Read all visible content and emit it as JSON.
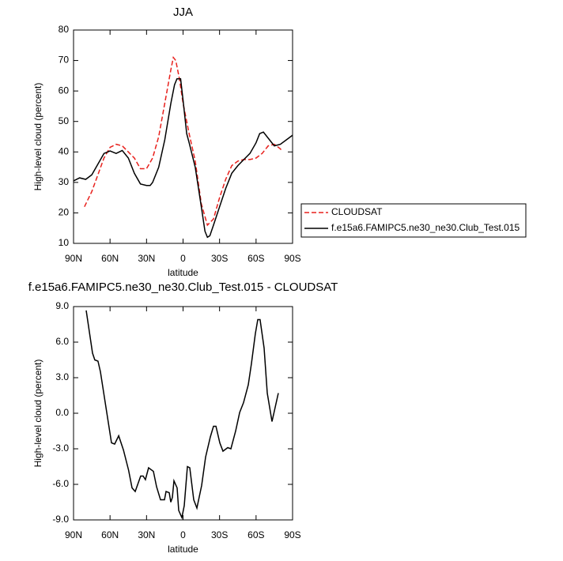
{
  "chart_data": [
    {
      "type": "line",
      "title": "JJA",
      "xlabel": "latitude",
      "ylabel": "High-level cloud (percent)",
      "xlim": [
        90,
        -90
      ],
      "ylim": [
        10,
        80
      ],
      "xticks": [
        {
          "value": 90,
          "label": "90N"
        },
        {
          "value": 60,
          "label": "60N"
        },
        {
          "value": 30,
          "label": "30N"
        },
        0,
        {
          "value": -30,
          "label": "30S"
        },
        {
          "value": -60,
          "label": "60S"
        },
        {
          "value": -90,
          "label": "90S"
        }
      ],
      "yticks": [
        10,
        20,
        30,
        40,
        50,
        60,
        70,
        80
      ],
      "legend": "right",
      "series": [
        {
          "name": "CLOUDSAT",
          "color": "#e8201c",
          "line_style": "dashed",
          "x": [
            81,
            75,
            70,
            65,
            60,
            55,
            50,
            45,
            40,
            35,
            30,
            25,
            20,
            15,
            10,
            8,
            6,
            3,
            0,
            -3,
            -5,
            -10,
            -15,
            -20,
            -25,
            -30,
            -35,
            -40,
            -45,
            -50,
            -55,
            -60,
            -65,
            -70,
            -75,
            -80,
            -81
          ],
          "values": [
            22,
            27,
            32.5,
            38,
            41.5,
            42.5,
            42,
            40,
            38,
            34.5,
            34.5,
            38,
            45,
            56,
            67,
            71,
            70,
            64,
            56,
            50,
            46,
            37,
            23,
            16,
            18,
            25,
            31,
            35.5,
            37,
            37.5,
            37.5,
            38,
            39.5,
            42,
            42.5,
            41,
            40.5
          ]
        },
        {
          "name": "f.e15a6.FAMIPC5.ne30_ne30.Club_Test.015",
          "color": "#000000",
          "line_style": "solid",
          "x": [
            90,
            85,
            80,
            75,
            70,
            65,
            60,
            55,
            50,
            45,
            40,
            35,
            30,
            27,
            25,
            20,
            15,
            10,
            7,
            5,
            2,
            0,
            -3,
            -5,
            -10,
            -15,
            -18,
            -20,
            -22,
            -25,
            -30,
            -35,
            -40,
            -45,
            -50,
            -55,
            -60,
            -63,
            -66,
            -70,
            -75,
            -80,
            -85,
            -90
          ],
          "values": [
            30.5,
            31.5,
            31,
            32.5,
            36,
            39.5,
            40.3,
            39.5,
            40.5,
            38,
            33,
            29.5,
            29,
            29,
            30,
            35,
            44,
            56,
            62,
            64,
            64,
            57,
            46,
            43,
            35,
            22,
            14,
            12,
            12.5,
            16,
            22,
            28,
            33,
            35.5,
            37.5,
            39.5,
            43,
            46,
            46.5,
            44.5,
            42,
            42.5,
            44,
            45.5
          ]
        }
      ]
    },
    {
      "type": "line",
      "title": "f.e15a6.FAMIPC5.ne30_ne30.Club_Test.015 - CLOUDSAT",
      "xlabel": "latitude",
      "ylabel": "High-level cloud (percent)",
      "xlim": [
        90,
        -90
      ],
      "ylim": [
        -9,
        9
      ],
      "xticks": [
        {
          "value": 90,
          "label": "90N"
        },
        {
          "value": 60,
          "label": "60N"
        },
        {
          "value": 30,
          "label": "30N"
        },
        0,
        {
          "value": -30,
          "label": "30S"
        },
        {
          "value": -60,
          "label": "60S"
        },
        {
          "value": -90,
          "label": "90S"
        }
      ],
      "yticks": [
        {
          "value": -9,
          "label": "-9.0"
        },
        {
          "value": -6,
          "label": "-6.0"
        },
        {
          "value": -3,
          "label": "-3.0"
        },
        {
          "value": 0,
          "label": "0.0"
        },
        {
          "value": 3,
          "label": "3.0"
        },
        {
          "value": 6,
          "label": "6.0"
        },
        {
          "value": 9,
          "label": "9.0"
        }
      ],
      "series": [
        {
          "color": "#000000",
          "line_style": "solid",
          "x": [
            79.6,
            74.4,
            72.5,
            69.9,
            67.9,
            62.7,
            58.8,
            56.2,
            52.9,
            49,
            44.8,
            41.9,
            39.3,
            34.8,
            32.8,
            30.9,
            28.3,
            24.4,
            21.8,
            18.5,
            15.3,
            14,
            11.4,
            10.1,
            8.8,
            7.5,
            4.9,
            3.6,
            1,
            -1,
            -3.6,
            -5.5,
            -8.8,
            -11.4,
            -15.3,
            -18.5,
            -22.4,
            -25,
            -27,
            -30.2,
            -32.8,
            -36.7,
            -39.3,
            -43.2,
            -46.5,
            -49.7,
            -53.6,
            -56.2,
            -59.4,
            -61.4,
            -63.3,
            -66.6,
            -69.2,
            -73.1,
            -78.3
          ],
          "values": [
            8.67,
            5.07,
            4.5,
            4.4,
            3.5,
            0.07,
            -2.5,
            -2.6,
            -1.9,
            -3.1,
            -4.8,
            -6.3,
            -6.6,
            -5.3,
            -5.3,
            -5.6,
            -4.6,
            -4.9,
            -6.2,
            -7.3,
            -7.3,
            -6.6,
            -6.7,
            -7.5,
            -7.1,
            -5.7,
            -6.3,
            -8.2,
            -8.8,
            -7.8,
            -4.5,
            -4.6,
            -7.3,
            -8,
            -6.1,
            -3.7,
            -2,
            -1.1,
            -1.1,
            -2.5,
            -3.2,
            -2.9,
            -3,
            -1.5,
            0.07,
            0.9,
            2.4,
            4.2,
            6.7,
            7.9,
            7.9,
            5.5,
            1.7,
            -0.7,
            1.7
          ]
        }
      ]
    }
  ]
}
